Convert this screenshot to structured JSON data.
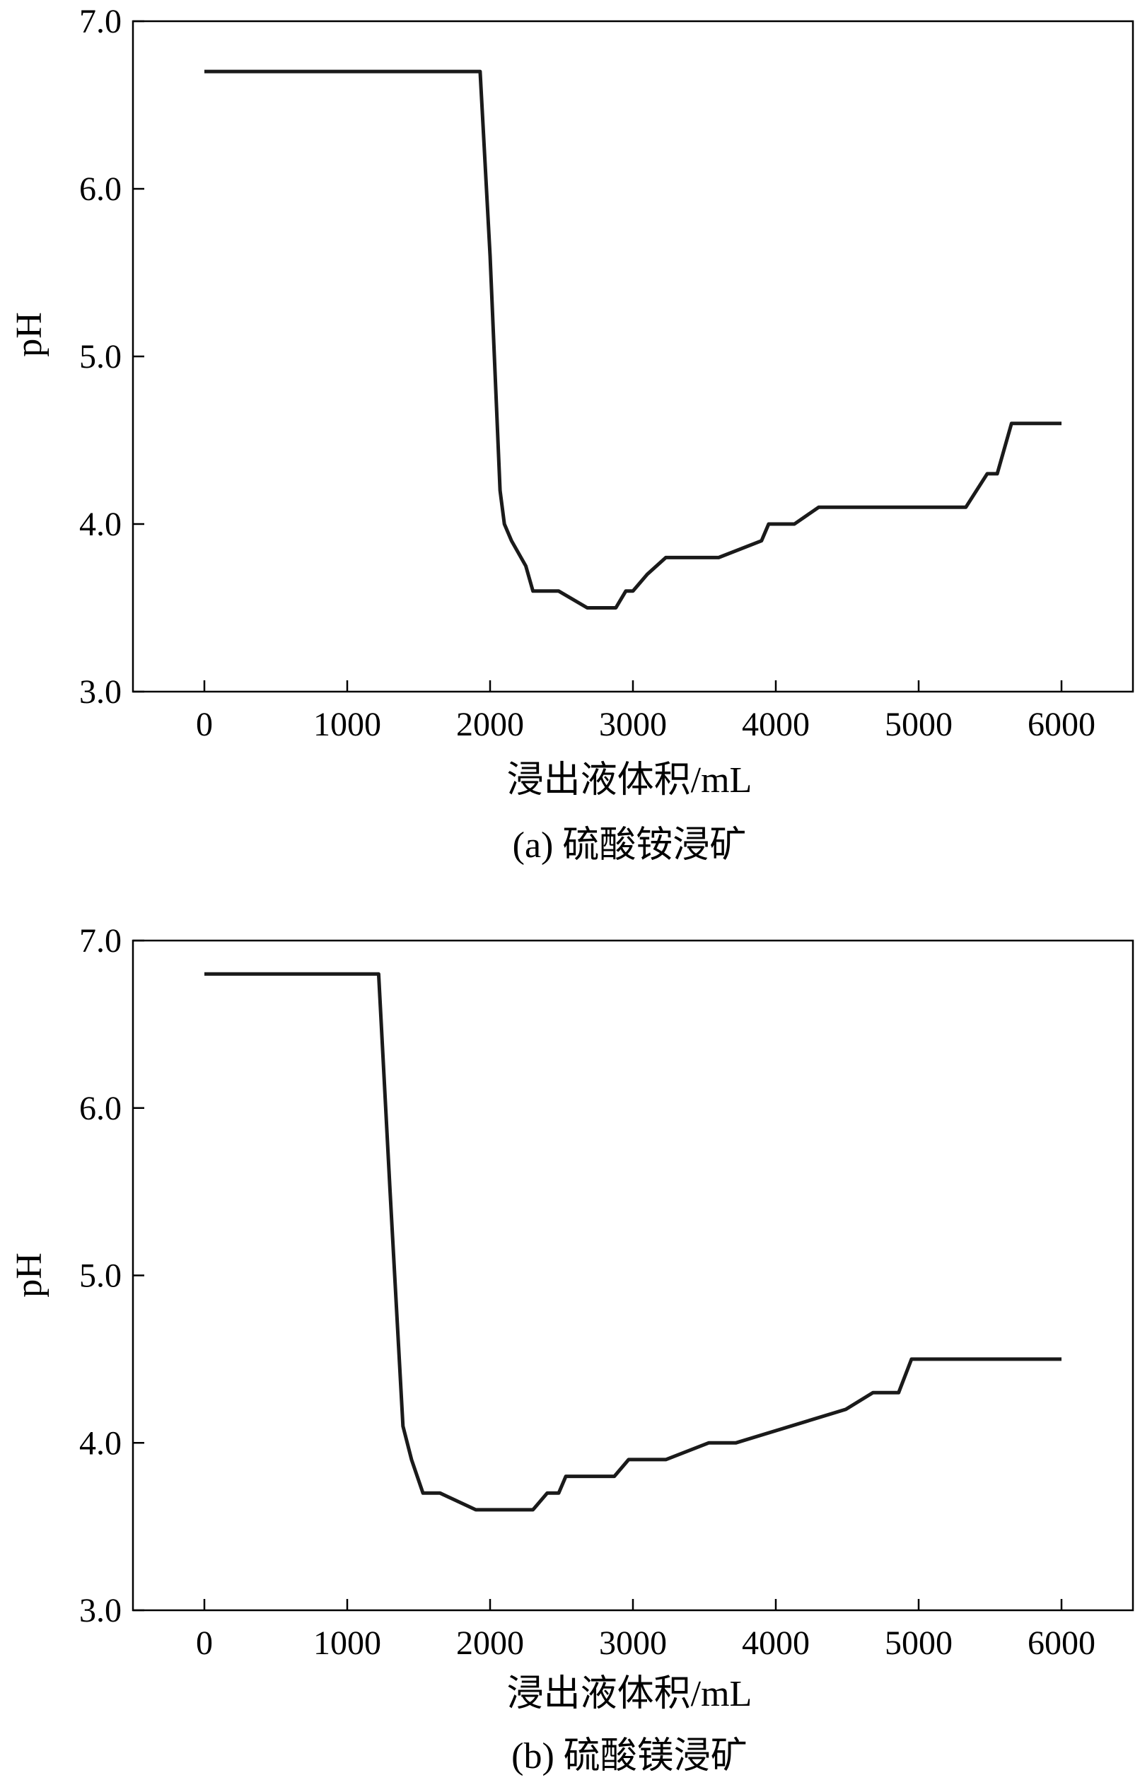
{
  "chart_data": [
    {
      "type": "line",
      "caption": "(a) 硫酸铵浸矿",
      "xlabel": "浸出液体积/mL",
      "ylabel": "pH",
      "xlim": [
        -500,
        6500
      ],
      "ylim": [
        3.0,
        7.0
      ],
      "xticks": [
        0,
        1000,
        2000,
        3000,
        4000,
        5000,
        6000
      ],
      "xtick_labels": [
        "0",
        "1000",
        "2000",
        "3000",
        "4000",
        "5000",
        "6000"
      ],
      "yticks": [
        3.0,
        4.0,
        5.0,
        6.0,
        7.0
      ],
      "ytick_labels": [
        "3.0",
        "4.0",
        "5.0",
        "6.0",
        "7.0"
      ],
      "grid": false,
      "line_color": "#1a1a1a",
      "x": [
        0,
        1930,
        2000,
        2070,
        2100,
        2150,
        2250,
        2300,
        2480,
        2680,
        2880,
        2950,
        3000,
        3100,
        3230,
        3600,
        3900,
        3950,
        4130,
        4300,
        5330,
        5480,
        5550,
        5650,
        6000
      ],
      "y": [
        6.7,
        6.7,
        5.6,
        4.2,
        4.0,
        3.9,
        3.75,
        3.6,
        3.6,
        3.5,
        3.5,
        3.6,
        3.6,
        3.7,
        3.8,
        3.8,
        3.9,
        4.0,
        4.0,
        4.1,
        4.1,
        4.3,
        4.3,
        4.6,
        4.6
      ]
    },
    {
      "type": "line",
      "caption": "(b) 硫酸镁浸矿",
      "xlabel": "浸出液体积/mL",
      "ylabel": "pH",
      "xlim": [
        -500,
        6500
      ],
      "ylim": [
        3.0,
        7.0
      ],
      "xticks": [
        0,
        1000,
        2000,
        3000,
        4000,
        5000,
        6000
      ],
      "xtick_labels": [
        "0",
        "1000",
        "2000",
        "3000",
        "4000",
        "5000",
        "6000"
      ],
      "yticks": [
        3.0,
        4.0,
        5.0,
        6.0,
        7.0
      ],
      "ytick_labels": [
        "3.0",
        "4.0",
        "5.0",
        "6.0",
        "7.0"
      ],
      "grid": false,
      "line_color": "#1a1a1a",
      "x": [
        0,
        1220,
        1300,
        1390,
        1450,
        1530,
        1650,
        1900,
        2300,
        2400,
        2480,
        2530,
        2870,
        2970,
        3230,
        3530,
        3720,
        4490,
        4680,
        4860,
        4950,
        6000
      ],
      "y": [
        6.8,
        6.8,
        5.5,
        4.1,
        3.9,
        3.7,
        3.7,
        3.6,
        3.6,
        3.7,
        3.7,
        3.8,
        3.8,
        3.9,
        3.9,
        4.0,
        4.0,
        4.2,
        4.3,
        4.3,
        4.5,
        4.5
      ]
    }
  ]
}
